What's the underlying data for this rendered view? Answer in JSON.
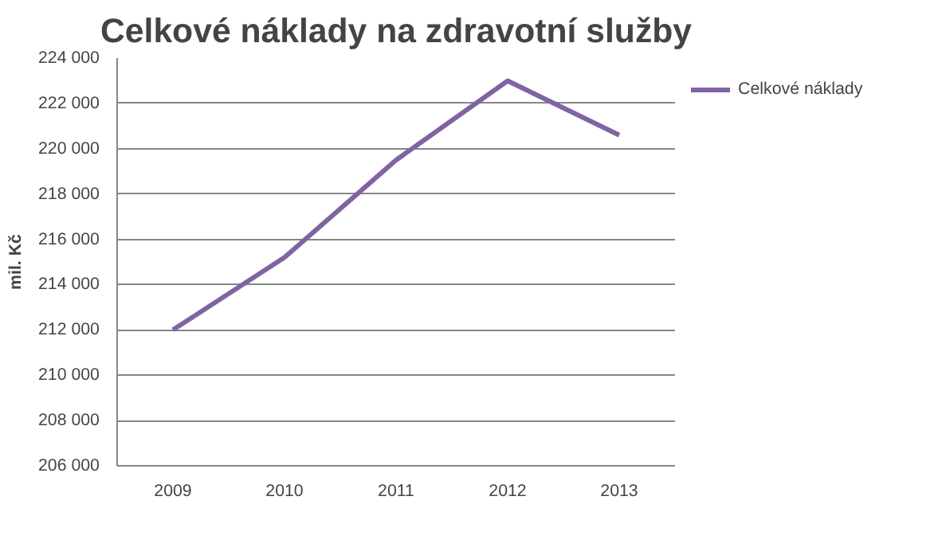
{
  "chart_data": {
    "type": "line",
    "title": "Celkové náklady na zdravotní služby",
    "ylabel": "mil. Kč",
    "categories": [
      "2009",
      "2010",
      "2011",
      "2012",
      "2013"
    ],
    "series": [
      {
        "name": "Celkové náklady",
        "color": "#8064a2",
        "values": [
          212000,
          215200,
          219500,
          223000,
          220600
        ]
      }
    ],
    "ylim": [
      206000,
      224000
    ],
    "yticks": [
      {
        "value": 206000,
        "label": "206 000"
      },
      {
        "value": 208000,
        "label": "208 000"
      },
      {
        "value": 210000,
        "label": "210 000"
      },
      {
        "value": 212000,
        "label": "212 000"
      },
      {
        "value": 214000,
        "label": "214 000"
      },
      {
        "value": 216000,
        "label": "216 000"
      },
      {
        "value": 218000,
        "label": "218 000"
      },
      {
        "value": 220000,
        "label": "220 000"
      },
      {
        "value": 222000,
        "label": "222 000"
      },
      {
        "value": 224000,
        "label": "224 000"
      }
    ],
    "grid": "y",
    "legend": "right",
    "marker": "none",
    "line_style": "solid"
  }
}
